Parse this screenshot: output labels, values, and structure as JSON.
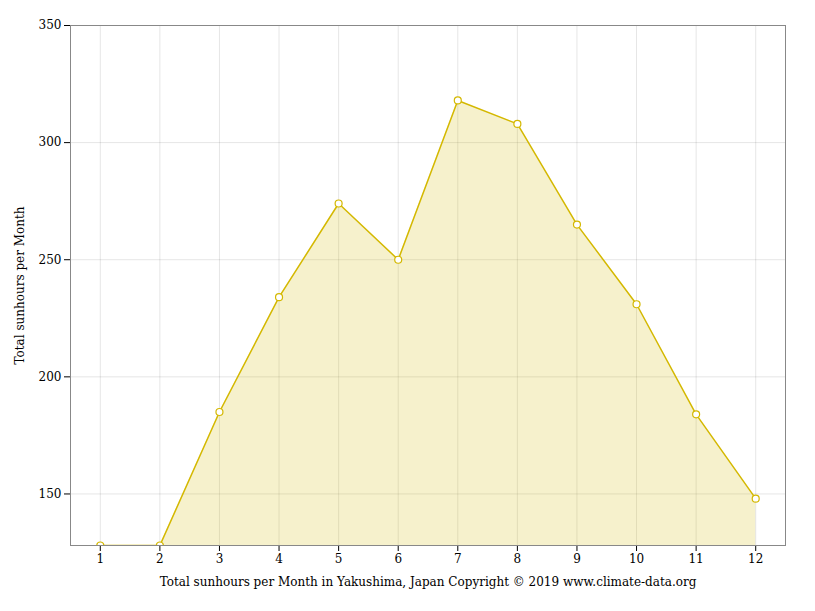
{
  "chart_data": {
    "type": "area",
    "x": [
      1,
      2,
      3,
      4,
      5,
      6,
      7,
      8,
      9,
      10,
      11,
      12
    ],
    "values": [
      128,
      128,
      185,
      234,
      274,
      250,
      318,
      308,
      265,
      231,
      184,
      148
    ],
    "xlabel": "Total sunhours per Month in Yakushima, Japan Copyright © 2019 www.climate-data.org",
    "ylabel": "Total sunhours per Month",
    "xlim": [
      0.5,
      12.5
    ],
    "xticks": [
      1,
      2,
      3,
      4,
      5,
      6,
      7,
      8,
      9,
      10,
      11,
      12
    ],
    "ylim": [
      128,
      350
    ],
    "yticks": [
      150,
      200,
      250,
      300,
      350
    ],
    "grid": true,
    "color": "#D4B800",
    "marker": "circle"
  }
}
